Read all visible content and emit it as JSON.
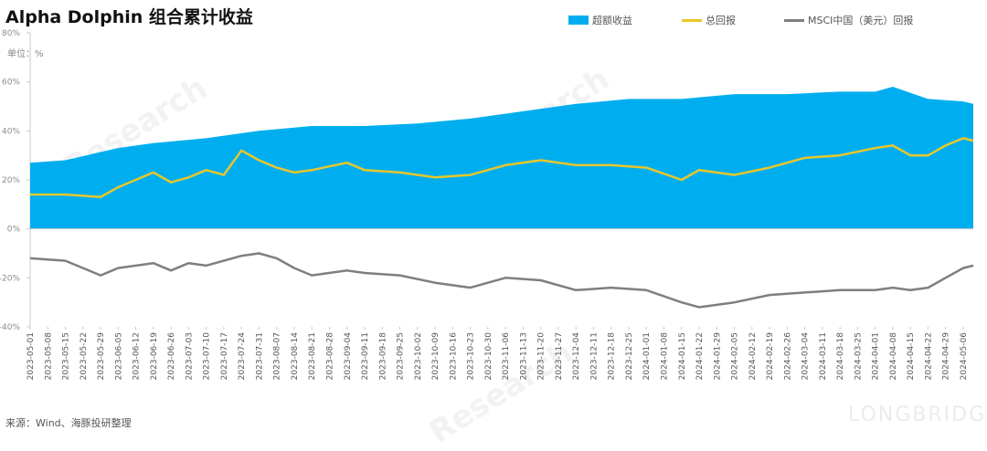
{
  "title": "Alpha Dolphin 组合累计收益",
  "unit_label": "单位：%",
  "source": "来源：Wind、海豚投研整理",
  "watermark": "Research",
  "footer_brand": "LONGBRIDGE",
  "colors": {
    "excess": "#00aeef",
    "total": "#e8c72c",
    "msci": "#7f7f7f"
  },
  "chart_data": {
    "type": "line",
    "ylim": [
      -40,
      80
    ],
    "yticks": [
      "-40%",
      "-20%",
      "0%",
      "20%",
      "40%",
      "60%",
      "80%"
    ],
    "ytick_values": [
      -40,
      -20,
      0,
      20,
      40,
      60,
      80
    ],
    "x_start": "2023-05-01",
    "x_end": "2024-05-10",
    "xticks": [
      "2023-05-01",
      "2023-05-08",
      "2023-05-15",
      "2023-05-22",
      "2023-05-29",
      "2023-06-05",
      "2023-06-12",
      "2023-06-19",
      "2023-06-26",
      "2023-07-03",
      "2023-07-10",
      "2023-07-17",
      "2023-07-24",
      "2023-07-31",
      "2023-08-07",
      "2023-08-14",
      "2023-08-21",
      "2023-08-28",
      "2023-09-04",
      "2023-09-11",
      "2023-09-18",
      "2023-09-25",
      "2023-10-02",
      "2023-10-09",
      "2023-10-16",
      "2023-10-23",
      "2023-10-30",
      "2023-11-06",
      "2023-11-13",
      "2023-11-20",
      "2023-11-27",
      "2023-12-04",
      "2023-12-11",
      "2023-12-18",
      "2023-12-25",
      "2024-01-01",
      "2024-01-08",
      "2024-01-15",
      "2024-01-22",
      "2024-01-29",
      "2024-02-05",
      "2024-02-12",
      "2024-02-19",
      "2024-02-26",
      "2024-03-04",
      "2024-03-11",
      "2024-03-18",
      "2024-03-25",
      "2024-04-01",
      "2024-04-08",
      "2024-04-15",
      "2024-04-22",
      "2024-04-29",
      "2024-05-06"
    ],
    "series": [
      {
        "name": "超额收益",
        "kind": "area",
        "color": "#00aeef",
        "x": [
          "2023-05-01",
          "2023-05-15",
          "2023-06-05",
          "2023-06-19",
          "2023-07-10",
          "2023-07-31",
          "2023-08-21",
          "2023-09-11",
          "2023-10-02",
          "2023-10-23",
          "2023-11-13",
          "2023-12-04",
          "2023-12-25",
          "2024-01-15",
          "2024-02-05",
          "2024-02-26",
          "2024-03-18",
          "2024-04-01",
          "2024-04-08",
          "2024-04-22",
          "2024-05-06",
          "2024-05-10"
        ],
        "values": [
          27,
          28,
          33,
          35,
          37,
          40,
          42,
          42,
          43,
          45,
          48,
          51,
          53,
          53,
          55,
          55,
          56,
          56,
          58,
          53,
          52,
          51
        ]
      },
      {
        "name": "总回报",
        "kind": "line",
        "color": "#e8c72c",
        "x": [
          "2023-05-01",
          "2023-05-15",
          "2023-05-29",
          "2023-06-05",
          "2023-06-19",
          "2023-06-26",
          "2023-07-03",
          "2023-07-10",
          "2023-07-17",
          "2023-07-24",
          "2023-07-31",
          "2023-08-07",
          "2023-08-14",
          "2023-08-21",
          "2023-09-04",
          "2023-09-11",
          "2023-09-25",
          "2023-10-09",
          "2023-10-23",
          "2023-11-06",
          "2023-11-20",
          "2023-12-04",
          "2023-12-18",
          "2024-01-01",
          "2024-01-15",
          "2024-01-22",
          "2024-02-05",
          "2024-02-19",
          "2024-03-04",
          "2024-03-18",
          "2024-04-01",
          "2024-04-08",
          "2024-04-15",
          "2024-04-22",
          "2024-04-29",
          "2024-05-06",
          "2024-05-10"
        ],
        "values": [
          14,
          14,
          13,
          17,
          23,
          19,
          21,
          24,
          22,
          32,
          28,
          25,
          23,
          24,
          27,
          24,
          23,
          21,
          22,
          26,
          28,
          26,
          26,
          25,
          20,
          24,
          22,
          25,
          29,
          30,
          33,
          34,
          30,
          30,
          34,
          37,
          36
        ]
      },
      {
        "name": "MSCI中国（美元）回报",
        "kind": "line",
        "color": "#7f7f7f",
        "x": [
          "2023-05-01",
          "2023-05-15",
          "2023-05-29",
          "2023-06-05",
          "2023-06-19",
          "2023-06-26",
          "2023-07-03",
          "2023-07-10",
          "2023-07-17",
          "2023-07-24",
          "2023-07-31",
          "2023-08-07",
          "2023-08-14",
          "2023-08-21",
          "2023-09-04",
          "2023-09-11",
          "2023-09-25",
          "2023-10-09",
          "2023-10-23",
          "2023-11-06",
          "2023-11-20",
          "2023-12-04",
          "2023-12-18",
          "2024-01-01",
          "2024-01-15",
          "2024-01-22",
          "2024-02-05",
          "2024-02-19",
          "2024-03-04",
          "2024-03-18",
          "2024-04-01",
          "2024-04-08",
          "2024-04-15",
          "2024-04-22",
          "2024-04-29",
          "2024-05-06",
          "2024-05-10"
        ],
        "values": [
          -12,
          -13,
          -19,
          -16,
          -14,
          -17,
          -14,
          -15,
          -13,
          -11,
          -10,
          -12,
          -16,
          -19,
          -17,
          -18,
          -19,
          -22,
          -24,
          -20,
          -21,
          -25,
          -24,
          -25,
          -30,
          -32,
          -30,
          -27,
          -26,
          -25,
          -25,
          -24,
          -25,
          -24,
          -20,
          -16,
          -15
        ]
      }
    ]
  }
}
